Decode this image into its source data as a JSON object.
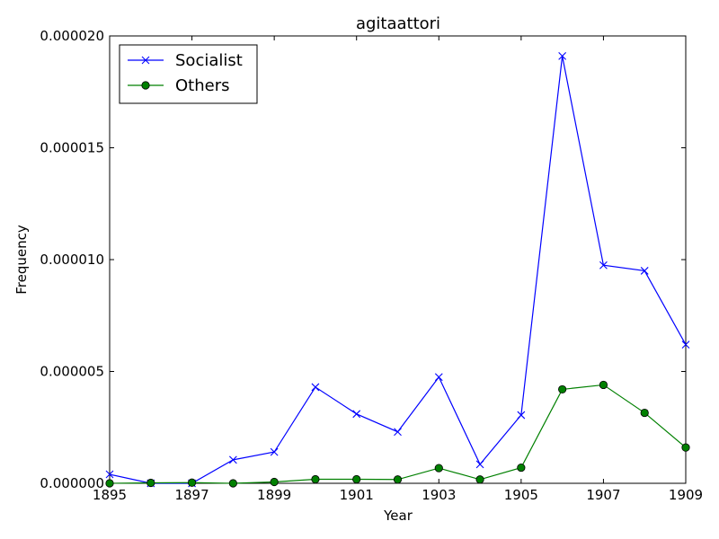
{
  "chart_data": {
    "type": "line",
    "title": "agitaattori",
    "xlabel": "Year",
    "ylabel": "Frequency",
    "xlim": [
      1895,
      1909
    ],
    "ylim": [
      0,
      2e-05
    ],
    "x_ticks": [
      1895,
      1897,
      1899,
      1901,
      1903,
      1905,
      1907,
      1909
    ],
    "x_tick_labels": [
      "1895",
      "1897",
      "1899",
      "1901",
      "1903",
      "1905",
      "1907",
      "1909"
    ],
    "y_ticks": [
      0,
      5e-06,
      1e-05,
      1.5e-05,
      2e-05
    ],
    "y_tick_labels": [
      "0.000000",
      "0.000005",
      "0.000010",
      "0.000015",
      "0.000020"
    ],
    "legend_position": "top-left",
    "x": [
      1895,
      1896,
      1897,
      1898,
      1899,
      1900,
      1901,
      1902,
      1903,
      1904,
      1905,
      1906,
      1907,
      1908,
      1909
    ],
    "series": [
      {
        "name": "Socialist",
        "color": "#0000ff",
        "marker": "x",
        "values": [
          4e-07,
          0.0,
          0.0,
          1.05e-06,
          1.4e-06,
          4.3e-06,
          3.1e-06,
          2.3e-06,
          4.75e-06,
          8.5e-07,
          3.05e-06,
          1.91e-05,
          9.75e-06,
          9.5e-06,
          6.2e-06
        ]
      },
      {
        "name": "Others",
        "color": "#008000",
        "marker": "o",
        "values": [
          0.0,
          2e-08,
          3e-08,
          0.0,
          6e-08,
          1.8e-07,
          1.8e-07,
          1.7e-07,
          6.8e-07,
          1.7e-07,
          7e-07,
          4.2e-06,
          4.4e-06,
          3.15e-06,
          1.6e-06
        ]
      }
    ]
  }
}
